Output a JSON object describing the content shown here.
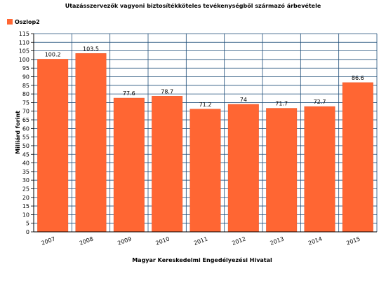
{
  "chart_data": {
    "type": "bar",
    "title": "Utazásszervezők vagyoni biztosítékköteles tevékenységből származó árbevétele",
    "xlabel": "Magyar Kereskedelmi Engedélyezési Hivatal",
    "ylabel": "Milliárd forint",
    "categories": [
      "2007",
      "2008",
      "2009",
      "2010",
      "2011",
      "2012",
      "2013",
      "2014",
      "2015"
    ],
    "series": [
      {
        "name": "Oszlop2",
        "values": [
          100.2,
          103.5,
          77.6,
          78.7,
          71.2,
          74,
          71.7,
          72.7,
          86.6
        ],
        "labels": [
          "100.2",
          "103.5",
          "77.6",
          "78.7",
          "71.2",
          "74",
          "71.7",
          "72.7",
          "86.6"
        ]
      }
    ],
    "ylim": [
      0,
      115
    ],
    "ytick_step": 5,
    "grid": true,
    "legend_position": "top-left",
    "colors": {
      "bar": "#ff6633",
      "bar_edge": "#e8552a",
      "grid": "#1f4e79",
      "axis": "#000000"
    }
  }
}
